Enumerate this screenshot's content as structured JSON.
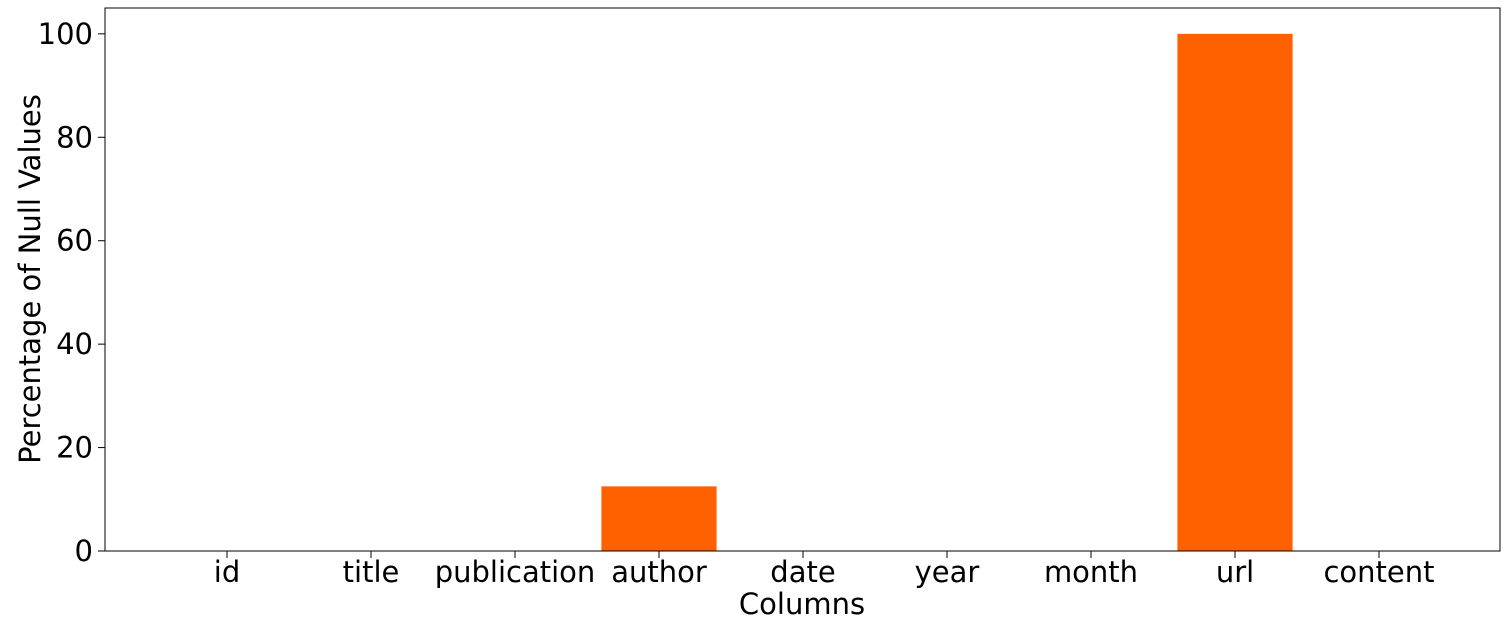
{
  "chart_data": {
    "type": "bar",
    "title": "",
    "xlabel": "Columns",
    "ylabel": "Percentage of Null Values",
    "categories": [
      "id",
      "title",
      "publication",
      "author",
      "date",
      "year",
      "month",
      "url",
      "content"
    ],
    "values": [
      0,
      0,
      0,
      12.5,
      0,
      0,
      0,
      100,
      0
    ],
    "ylim": [
      0,
      105
    ],
    "yticks": [
      0,
      20,
      40,
      60,
      80,
      100
    ],
    "grid": false,
    "legend": "none",
    "bar_color": "#ff6100"
  }
}
